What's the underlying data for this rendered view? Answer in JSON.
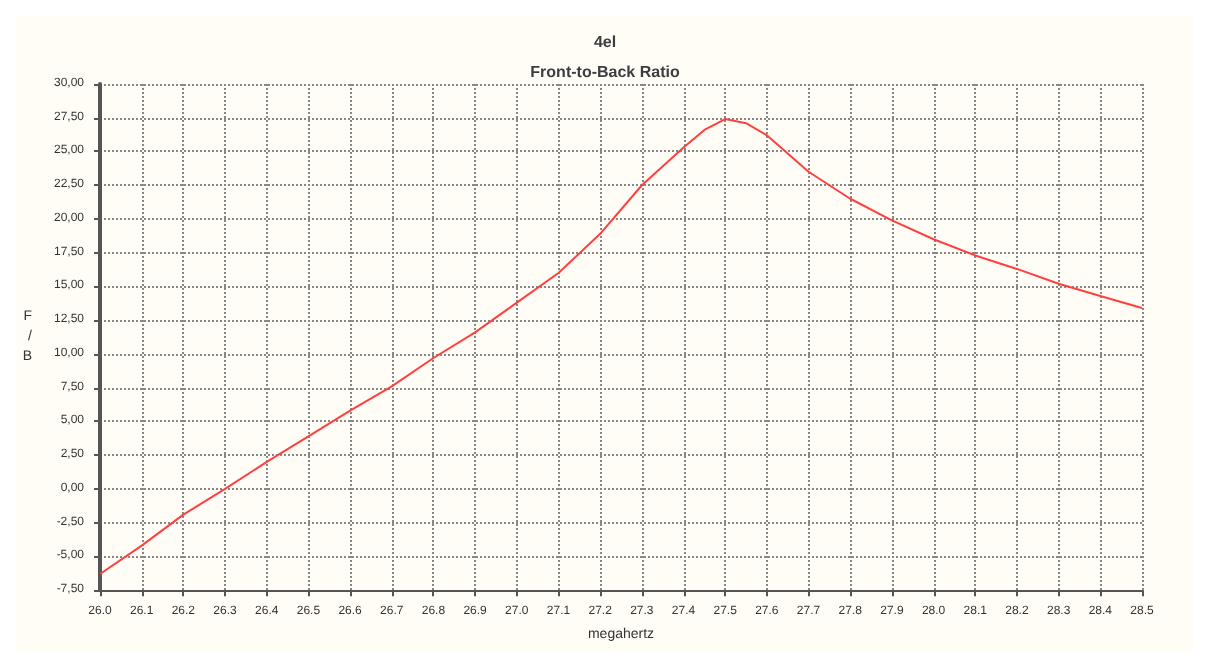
{
  "chart_data": {
    "type": "line",
    "title": "4el",
    "subtitle": "Front-to-Back Ratio",
    "xlabel": "megahertz",
    "ylabel": "F/B",
    "x": [
      26.0,
      26.1,
      26.2,
      26.3,
      26.4,
      26.5,
      26.6,
      26.7,
      26.8,
      26.9,
      27.0,
      27.1,
      27.2,
      27.3,
      27.4,
      27.45,
      27.5,
      27.55,
      27.6,
      27.7,
      27.8,
      27.9,
      28.0,
      28.1,
      28.2,
      28.3,
      28.4,
      28.5
    ],
    "series": [
      {
        "color": "#ff4040",
        "values": [
          -6.3,
          -4.2,
          -1.9,
          0.0,
          2.0,
          3.9,
          5.8,
          7.6,
          9.7,
          11.6,
          13.8,
          16.0,
          18.9,
          22.5,
          25.3,
          26.6,
          27.4,
          27.1,
          26.2,
          23.5,
          21.5,
          19.9,
          18.5,
          17.3,
          16.3,
          15.2,
          14.3,
          13.4
        ]
      }
    ],
    "xlim": [
      26.0,
      28.5
    ],
    "xticks": [
      {
        "value": 26.0,
        "label": "26.0"
      },
      {
        "value": 26.1,
        "label": "26.1"
      },
      {
        "value": 26.2,
        "label": "26.2"
      },
      {
        "value": 26.3,
        "label": "26.3"
      },
      {
        "value": 26.4,
        "label": "26.4"
      },
      {
        "value": 26.5,
        "label": "26.5"
      },
      {
        "value": 26.6,
        "label": "26.6"
      },
      {
        "value": 26.7,
        "label": "26.7"
      },
      {
        "value": 26.8,
        "label": "26.8"
      },
      {
        "value": 26.9,
        "label": "26.9"
      },
      {
        "value": 27.0,
        "label": "27.0"
      },
      {
        "value": 27.1,
        "label": "27.1"
      },
      {
        "value": 27.2,
        "label": "27.2"
      },
      {
        "value": 27.3,
        "label": "27.3"
      },
      {
        "value": 27.4,
        "label": "27.4"
      },
      {
        "value": 27.5,
        "label": "27.5"
      },
      {
        "value": 27.6,
        "label": "27.6"
      },
      {
        "value": 27.7,
        "label": "27.7"
      },
      {
        "value": 27.8,
        "label": "27.8"
      },
      {
        "value": 27.9,
        "label": "27.9"
      },
      {
        "value": 28.0,
        "label": "28.0"
      },
      {
        "value": 28.1,
        "label": "28.1"
      },
      {
        "value": 28.2,
        "label": "28.2"
      },
      {
        "value": 28.3,
        "label": "28.3"
      },
      {
        "value": 28.4,
        "label": "28.4"
      },
      {
        "value": 28.5,
        "label": "28.5"
      }
    ],
    "ylim": [
      -7.5,
      30
    ],
    "yticks": [
      {
        "value": -7.5,
        "label": "-7,50"
      },
      {
        "value": -5,
        "label": "-5,00"
      },
      {
        "value": -2.5,
        "label": "-2,50"
      },
      {
        "value": 0,
        "label": "0,00"
      },
      {
        "value": 2.5,
        "label": "2,50"
      },
      {
        "value": 5,
        "label": "5,00"
      },
      {
        "value": 7.5,
        "label": "7,50"
      },
      {
        "value": 10,
        "label": "10,00"
      },
      {
        "value": 12.5,
        "label": "12,50"
      },
      {
        "value": 15,
        "label": "15,00"
      },
      {
        "value": 17.5,
        "label": "17,50"
      },
      {
        "value": 20,
        "label": "20,00"
      },
      {
        "value": 22.5,
        "label": "22,50"
      },
      {
        "value": 25,
        "label": "25,00"
      },
      {
        "value": 27.5,
        "label": "27,50"
      },
      {
        "value": 30,
        "label": "30,00"
      }
    ],
    "grid": true,
    "marker": "none",
    "line_style": "solid"
  }
}
